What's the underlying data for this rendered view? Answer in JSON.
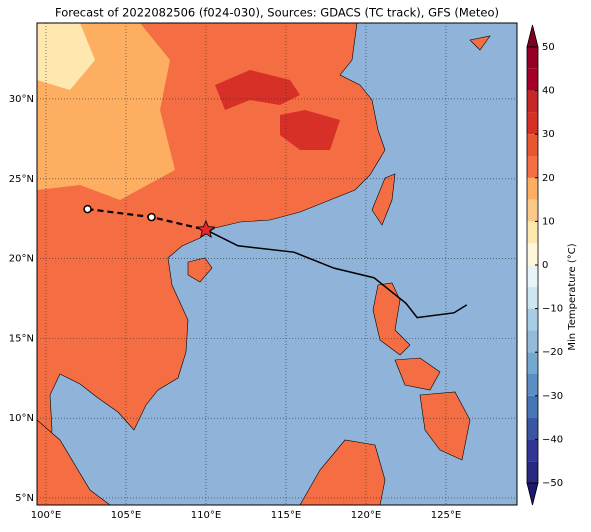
{
  "title": "Forecast of 2022082506 (f024-030), Sources: GDACS (TC track), GFS (Meteo)",
  "map": {
    "lonlim": [
      99.44,
      129.44
    ],
    "latlim": [
      4.56,
      34.76
    ],
    "ocean": "#8fb3d9",
    "xticks": [
      {
        "value": 100,
        "label": "100°E"
      },
      {
        "value": 105,
        "label": "105°E"
      },
      {
        "value": 110,
        "label": "110°E"
      },
      {
        "value": 115,
        "label": "115°E"
      },
      {
        "value": 120,
        "label": "120°E"
      },
      {
        "value": 125,
        "label": "125°E"
      }
    ],
    "yticks": [
      {
        "value": 5,
        "label": "5°N"
      },
      {
        "value": 10,
        "label": "10°N"
      },
      {
        "value": 15,
        "label": "15°N"
      },
      {
        "value": 20,
        "label": "20°N"
      },
      {
        "value": 25,
        "label": "25°N"
      },
      {
        "value": 30,
        "label": "30°N"
      }
    ],
    "track_past": [
      [
        102.6,
        23.1
      ],
      [
        106.6,
        22.6
      ],
      [
        110.0,
        21.8
      ]
    ],
    "track_forecast": [
      [
        110.0,
        21.8
      ],
      [
        112.0,
        20.8
      ],
      [
        115.5,
        20.4
      ],
      [
        118.0,
        19.4
      ],
      [
        120.5,
        18.8
      ],
      [
        122.5,
        17.2
      ],
      [
        123.2,
        16.3
      ],
      [
        125.5,
        16.6
      ],
      [
        126.3,
        17.1
      ]
    ]
  },
  "colorbar": {
    "label": "Min Temperature (°C)",
    "lim": [
      -50,
      50
    ],
    "ticks": [
      50,
      40,
      30,
      20,
      10,
      0,
      {
        "value": -10,
        "label": "−10"
      },
      {
        "value": -20,
        "label": "−20"
      },
      {
        "value": -30,
        "label": "−30"
      },
      {
        "value": -40,
        "label": "−40"
      },
      {
        "value": -50,
        "label": "−50"
      }
    ],
    "bands": [
      "#282880",
      "#313695",
      "#3a56a0",
      "#4575b4",
      "#5b8fc4",
      "#74a9cf",
      "#92bcd9",
      "#a6cde3",
      "#cde6ef",
      "#e8f4f8",
      "#fff7dc",
      "#fee8b0",
      "#fdc98a",
      "#fdae61",
      "#f46d43",
      "#e8582f",
      "#d73027",
      "#c62828",
      "#a50026",
      "#960024"
    ],
    "under": "#1a1a6e",
    "over": "#800020"
  }
}
